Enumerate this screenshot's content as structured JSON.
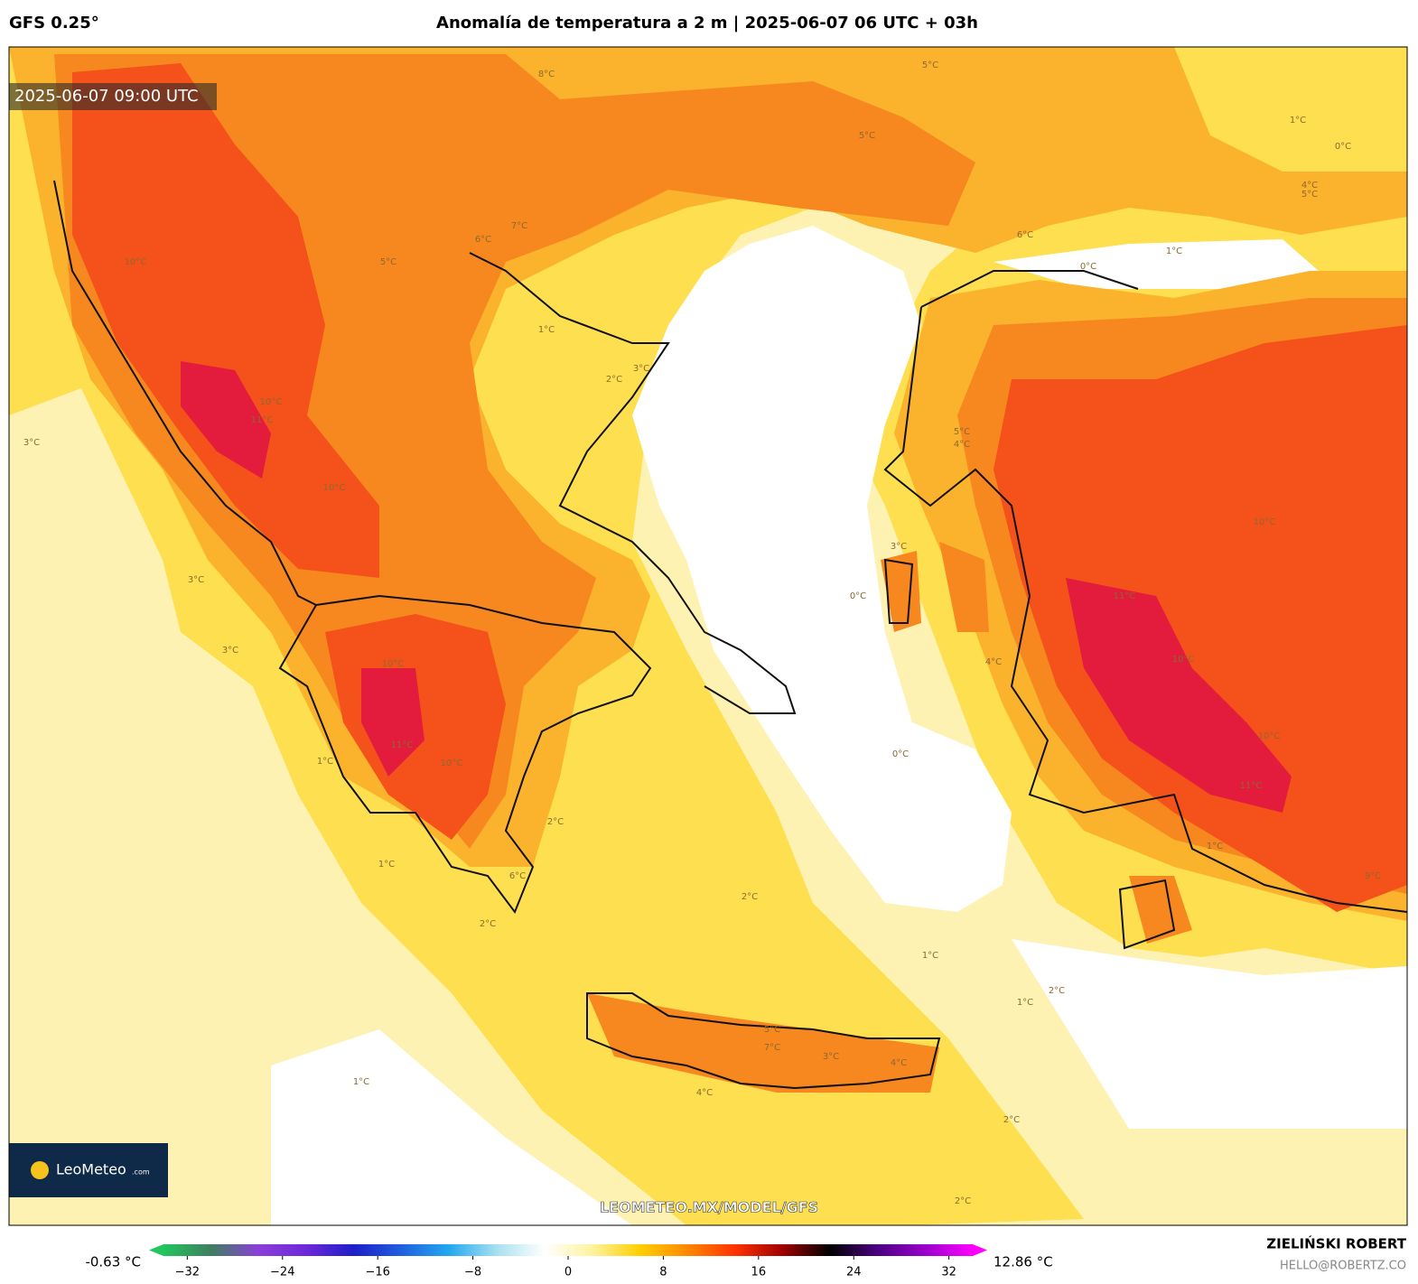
{
  "header": {
    "model": "GFS 0.25°",
    "title": "Anomalía de temperatura a 2 m | 2025-06-07 06 UTC + 03h"
  },
  "map": {
    "timestamp": "2025-06-07 09:00 UTC",
    "watermark": "LEOMETEO.MX/MODEL/GFS",
    "logo": "LeoMeteo",
    "logo_suffix": ".com",
    "contour_labels": [
      "10°C",
      "10°C",
      "11°C",
      "10°C",
      "10°C",
      "11°C",
      "10°C",
      "7°C",
      "6°C",
      "5°C",
      "8°C",
      "5°C",
      "5°C",
      "0°C",
      "1°C",
      "0°C",
      "10°C",
      "11°C",
      "10°C",
      "11°C",
      "10°C",
      "9°C",
      "1°C",
      "2°C",
      "1°C",
      "5°C",
      "7°C",
      "4°C",
      "4°C",
      "3°C",
      "2°C",
      "2°C",
      "1°C",
      "1°C",
      "2°C",
      "2°C",
      "0°C",
      "0°C",
      "3°C",
      "5°C",
      "4°C",
      "1°C",
      "2°C",
      "3°C",
      "1°C",
      "1°C",
      "3°C",
      "3°C",
      "3°C",
      "1°C",
      "4°C",
      "5°C",
      "6°C",
      "2°C",
      "6°C",
      "4°C"
    ]
  },
  "colorbar": {
    "min_label": "-0.63 °C",
    "max_label": "12.86 °C",
    "lim": [
      -34,
      34
    ],
    "ticks": [
      {
        "value": -32,
        "label": "−32"
      },
      {
        "value": -24,
        "label": "−24"
      },
      {
        "value": -16,
        "label": "−16"
      },
      {
        "value": -8,
        "label": "−8"
      },
      0,
      8,
      16,
      24,
      32
    ],
    "colors": [
      "#22c55e",
      "#3f7f5f",
      "#8b3fd9",
      "#6d28d9",
      "#1e1ec8",
      "#2060e0",
      "#22a8f0",
      "#a8e0f0",
      "#ffffff",
      "#fff2a0",
      "#ffd000",
      "#ff8800",
      "#ff3300",
      "#a00000",
      "#000000",
      "#4b0082",
      "#9900cc",
      "#ff00ff"
    ]
  },
  "credits": {
    "author": "ZIELIŃSKI ROBERT",
    "email": "HELLO@ROBERTZ.CO"
  }
}
